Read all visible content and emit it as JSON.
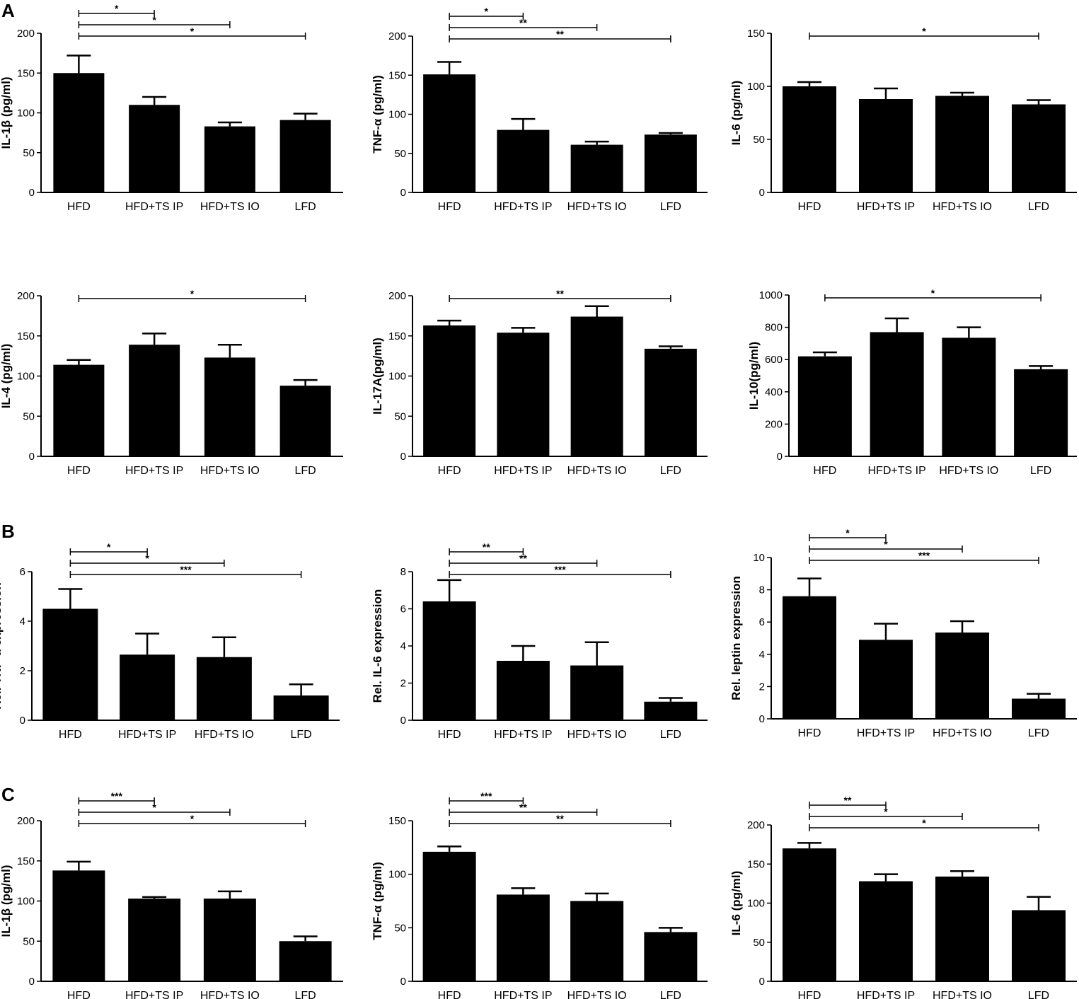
{
  "panel_labels": {
    "A": "A",
    "B": "B",
    "C": "C"
  },
  "chart_data": [
    {
      "type": "bar",
      "panel": "A",
      "ylabel": "IL-1β (pg/ml)",
      "ylim": [
        0,
        200
      ],
      "yticks": [
        0,
        50,
        100,
        150,
        200
      ],
      "categories": [
        "HFD",
        "HFD+TS IP",
        "HFD+TS IO",
        "LFD"
      ],
      "values": [
        150,
        110,
        83,
        91
      ],
      "errors": [
        22,
        10,
        5,
        8
      ],
      "significance": [
        {
          "from": 0,
          "to": 1,
          "label": "*"
        },
        {
          "from": 0,
          "to": 2,
          "label": "*"
        },
        {
          "from": 0,
          "to": 3,
          "label": "*"
        }
      ]
    },
    {
      "type": "bar",
      "panel": "A",
      "ylabel": "TNF-α (pg/ml)",
      "ylim": [
        0,
        200
      ],
      "yticks": [
        0,
        50,
        100,
        150,
        200
      ],
      "categories": [
        "HFD",
        "HFD+TS IP",
        "HFD+TS IO",
        "LFD"
      ],
      "values": [
        151,
        80,
        61,
        74
      ],
      "errors": [
        16,
        14,
        4,
        2
      ],
      "significance": [
        {
          "from": 0,
          "to": 1,
          "label": "*"
        },
        {
          "from": 0,
          "to": 2,
          "label": "**"
        },
        {
          "from": 0,
          "to": 3,
          "label": "**"
        }
      ]
    },
    {
      "type": "bar",
      "panel": "A",
      "ylabel": "IL-6 (pg/ml)",
      "ylim": [
        0,
        150
      ],
      "yticks": [
        0,
        50,
        100,
        150
      ],
      "categories": [
        "HFD",
        "HFD+TS IP",
        "HFD+TS IO",
        "LFD"
      ],
      "values": [
        100,
        88,
        91,
        83
      ],
      "errors": [
        4,
        10,
        3,
        4
      ],
      "significance": [
        {
          "from": 0,
          "to": 3,
          "label": "*"
        }
      ]
    },
    {
      "type": "bar",
      "panel": "A",
      "ylabel": "IL-4 (pg/ml)",
      "ylim": [
        0,
        200
      ],
      "yticks": [
        0,
        50,
        100,
        150,
        200
      ],
      "categories": [
        "HFD",
        "HFD+TS IP",
        "HFD+TS IO",
        "LFD"
      ],
      "values": [
        114,
        139,
        123,
        88
      ],
      "errors": [
        6,
        14,
        16,
        7
      ],
      "significance": [
        {
          "from": 0,
          "to": 3,
          "label": "*"
        }
      ]
    },
    {
      "type": "bar",
      "panel": "A",
      "ylabel": "IL-17A(pg/ml)",
      "ylim": [
        0,
        200
      ],
      "yticks": [
        0,
        50,
        100,
        150,
        200
      ],
      "categories": [
        "HFD",
        "HFD+TS IP",
        "HFD+TS IO",
        "LFD"
      ],
      "values": [
        163,
        154,
        174,
        134
      ],
      "errors": [
        6,
        6,
        13,
        3
      ],
      "significance": [
        {
          "from": 0,
          "to": 3,
          "label": "**"
        }
      ]
    },
    {
      "type": "bar",
      "panel": "A",
      "ylabel": "IL-10(pg/ml)",
      "ylim": [
        0,
        1000
      ],
      "yticks": [
        0,
        200,
        400,
        600,
        800,
        1000
      ],
      "categories": [
        "HFD",
        "HFD+TS IP",
        "HFD+TS IO",
        "LFD"
      ],
      "values": [
        620,
        770,
        735,
        540
      ],
      "errors": [
        25,
        85,
        65,
        20
      ],
      "significance": [
        {
          "from": 0,
          "to": 3,
          "label": "*"
        }
      ]
    },
    {
      "type": "bar",
      "panel": "B",
      "ylabel": "Rel. TNF-α expression",
      "ylim": [
        0,
        6
      ],
      "yticks": [
        0,
        2,
        4,
        6
      ],
      "categories": [
        "HFD",
        "HFD+TS IP",
        "HFD+TS IO",
        "LFD"
      ],
      "values": [
        4.5,
        2.65,
        2.55,
        1.0
      ],
      "errors": [
        0.8,
        0.85,
        0.8,
        0.45
      ],
      "significance": [
        {
          "from": 0,
          "to": 1,
          "label": "*"
        },
        {
          "from": 0,
          "to": 2,
          "label": "*"
        },
        {
          "from": 0,
          "to": 3,
          "label": "***"
        }
      ]
    },
    {
      "type": "bar",
      "panel": "B",
      "ylabel": "Rel. IL-6 expression",
      "ylim": [
        0,
        8
      ],
      "yticks": [
        0,
        2,
        4,
        6,
        8
      ],
      "categories": [
        "HFD",
        "HFD+TS IP",
        "HFD+TS IO",
        "LFD"
      ],
      "values": [
        6.4,
        3.2,
        2.95,
        1.0
      ],
      "errors": [
        1.15,
        0.8,
        1.25,
        0.2
      ],
      "significance": [
        {
          "from": 0,
          "to": 1,
          "label": "**"
        },
        {
          "from": 0,
          "to": 2,
          "label": "**"
        },
        {
          "from": 0,
          "to": 3,
          "label": "***"
        }
      ]
    },
    {
      "type": "bar",
      "panel": "B",
      "ylabel": "Rel. leptin expression",
      "ylim": [
        0,
        10
      ],
      "yticks": [
        0,
        2,
        4,
        6,
        8,
        10
      ],
      "categories": [
        "HFD",
        "HFD+TS IP",
        "HFD+TS IO",
        "LFD"
      ],
      "values": [
        7.6,
        4.9,
        5.35,
        1.25
      ],
      "errors": [
        1.1,
        1.0,
        0.7,
        0.3
      ],
      "significance": [
        {
          "from": 0,
          "to": 1,
          "label": "*"
        },
        {
          "from": 0,
          "to": 2,
          "label": "*"
        },
        {
          "from": 0,
          "to": 3,
          "label": "***"
        }
      ]
    },
    {
      "type": "bar",
      "panel": "C",
      "ylabel": "IL-1β (pg/ml)",
      "ylim": [
        0,
        200
      ],
      "yticks": [
        0,
        50,
        100,
        150,
        200
      ],
      "categories": [
        "HFD",
        "HFD+TS IP",
        "HFD+TS IO",
        "LFD"
      ],
      "values": [
        138,
        103,
        103,
        50
      ],
      "errors": [
        11,
        2,
        9,
        6
      ],
      "significance": [
        {
          "from": 0,
          "to": 1,
          "label": "***"
        },
        {
          "from": 0,
          "to": 2,
          "label": "*"
        },
        {
          "from": 0,
          "to": 3,
          "label": "*"
        }
      ]
    },
    {
      "type": "bar",
      "panel": "C",
      "ylabel": "TNF-α (pg/ml)",
      "ylim": [
        0,
        150
      ],
      "yticks": [
        0,
        50,
        100,
        150
      ],
      "categories": [
        "HFD",
        "HFD+TS IP",
        "HFD+TS IO",
        "LFD"
      ],
      "values": [
        121,
        81,
        75,
        46
      ],
      "errors": [
        5,
        6,
        7,
        4
      ],
      "significance": [
        {
          "from": 0,
          "to": 1,
          "label": "***"
        },
        {
          "from": 0,
          "to": 2,
          "label": "**"
        },
        {
          "from": 0,
          "to": 3,
          "label": "**"
        }
      ]
    },
    {
      "type": "bar",
      "panel": "C",
      "ylabel": "IL-6 (pg/ml)",
      "ylim": [
        0,
        200
      ],
      "yticks": [
        0,
        50,
        100,
        150,
        200
      ],
      "categories": [
        "HFD",
        "HFD+TS IP",
        "HFD+TS IO",
        "LFD"
      ],
      "values": [
        170,
        128,
        134,
        91
      ],
      "errors": [
        7,
        9,
        7,
        17
      ],
      "significance": [
        {
          "from": 0,
          "to": 1,
          "label": "**"
        },
        {
          "from": 0,
          "to": 2,
          "label": "*"
        },
        {
          "from": 0,
          "to": 3,
          "label": "*"
        }
      ]
    }
  ]
}
